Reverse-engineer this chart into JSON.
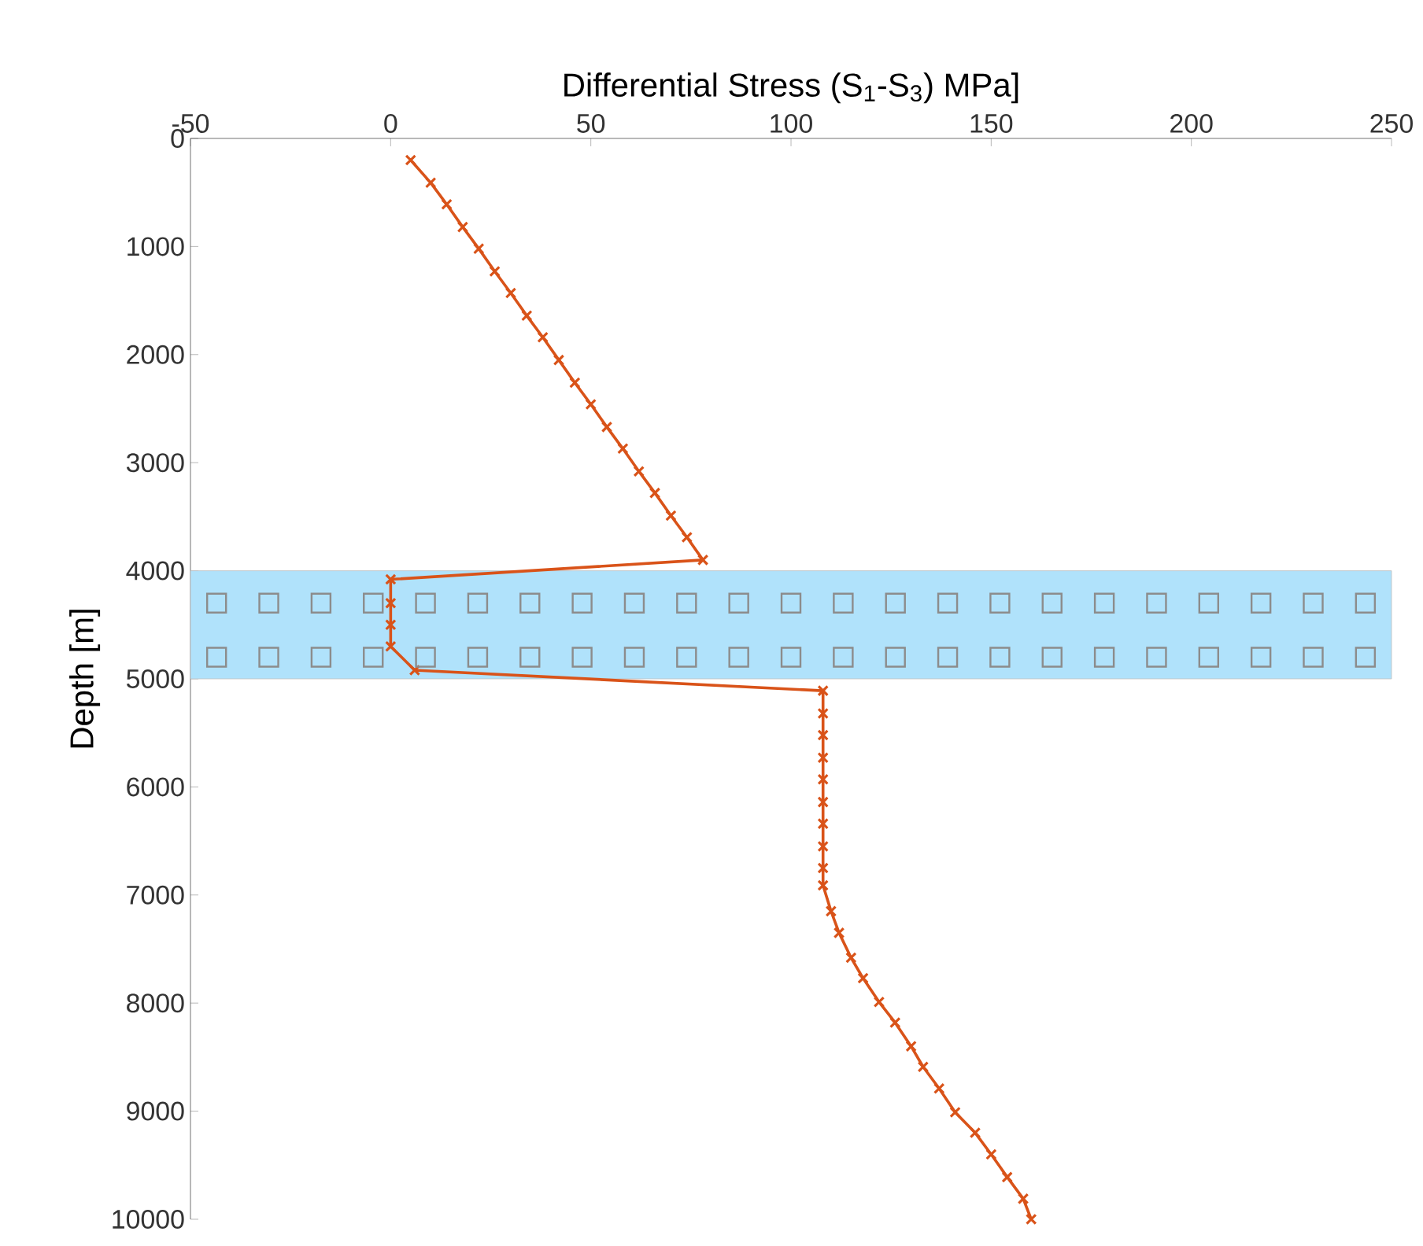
{
  "chart_data": {
    "type": "line",
    "xlabel": "Differential Stress (S$_{1}$-S$_{3}$) MPa]",
    "ylabel": "Depth [m]",
    "series": [
      {
        "color": "#d95319",
        "x": [
          5,
          10,
          14,
          18,
          22,
          26,
          30,
          34,
          38,
          42,
          46,
          50,
          54,
          58,
          62,
          66,
          70,
          74,
          78,
          0,
          0,
          0,
          0,
          6,
          108,
          108,
          108,
          108,
          108,
          108,
          108,
          108,
          108,
          108,
          110,
          112,
          115,
          118,
          122,
          126,
          130,
          133,
          137,
          141,
          146,
          150,
          154,
          158,
          160
        ],
        "values": [
          200,
          410,
          610,
          820,
          1020,
          1230,
          1430,
          1640,
          1840,
          2050,
          2260,
          2460,
          2670,
          2870,
          3080,
          3280,
          3490,
          3690,
          3900,
          4080,
          4300,
          4500,
          4700,
          4920,
          5110,
          5320,
          5520,
          5730,
          5930,
          6140,
          6340,
          6550,
          6750,
          6910,
          7150,
          7350,
          7580,
          7770,
          7990,
          8180,
          8400,
          8590,
          8790,
          9010,
          9200,
          9400,
          9610,
          9810,
          10000
        ]
      }
    ],
    "xlim": [
      -50,
      250
    ],
    "xticks": [
      -50,
      0,
      50,
      100,
      150,
      200,
      250
    ],
    "ylim": [
      10000,
      0
    ],
    "yticks": [
      0,
      1000,
      2000,
      3000,
      4000,
      5000,
      6000,
      7000,
      8000,
      9000,
      10000
    ],
    "bands": [
      {
        "axis": "y",
        "from": 4000,
        "to": 5000,
        "color": "#b0e2fb"
      }
    ],
    "marker": "cross",
    "line_style": "solid",
    "grid": false
  }
}
